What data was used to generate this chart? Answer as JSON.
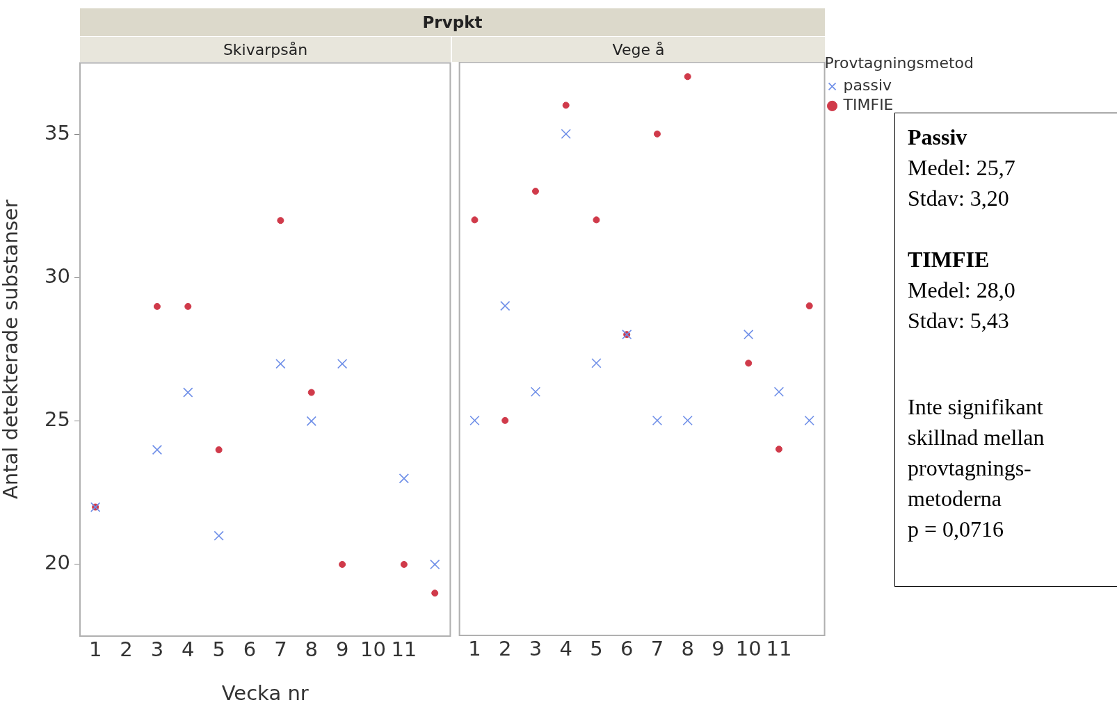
{
  "chart_data": [
    {
      "type": "scatter",
      "title": "Prvpkt",
      "subtitle": "Skivarpsån",
      "xlabel": "Vecka nr",
      "ylabel": "Antal detekterade substanser",
      "categories": [
        "1",
        "2",
        "3",
        "4",
        "5",
        "6",
        "7",
        "8",
        "9",
        "10",
        "11",
        null
      ],
      "ylim": [
        17.5,
        37.5
      ],
      "yticks": [
        20,
        25,
        30,
        35
      ],
      "series": [
        {
          "color": "#6f8fe8",
          "marker": "cross",
          "values": [
            22,
            null,
            24,
            26,
            21,
            null,
            27,
            25,
            27,
            null,
            23,
            20
          ]
        },
        {
          "color": "#d03a4a",
          "marker": "circle",
          "values": [
            22,
            null,
            29,
            29,
            24,
            null,
            32,
            26,
            20,
            null,
            20,
            19
          ]
        }
      ]
    },
    {
      "type": "scatter",
      "subtitle": "Vege å",
      "categories": [
        "1",
        "2",
        "3",
        "4",
        "5",
        "6",
        "7",
        "8",
        "9",
        "10",
        "11",
        null
      ],
      "ylim": [
        17.5,
        37.5
      ],
      "yticks": [
        20,
        25,
        30,
        35
      ],
      "tick_labels": "x",
      "legend": "top right",
      "legend_title": "Provtagningsmetod",
      "annotations": [
        "Passiv\nMedel: 25,7\nStdav: 3,20",
        "TIMFIE\nMedel: 28,0\nStdav: 5,43",
        "Inte signifikant\nskillnad mellan\nprovtagnings-\nmetoderna\np = 0,0716"
      ],
      "series": [
        {
          "name": "passiv",
          "color": "#6f8fe8",
          "marker": "cross",
          "values": [
            25,
            29,
            26,
            35,
            27,
            28,
            25,
            25,
            null,
            28,
            26,
            25
          ]
        },
        {
          "name": "TIMFIE",
          "color": "#d03a4a",
          "marker": "circle",
          "values": [
            32,
            25,
            33,
            36,
            32,
            28,
            35,
            37,
            null,
            27,
            24,
            29
          ]
        }
      ]
    }
  ]
}
